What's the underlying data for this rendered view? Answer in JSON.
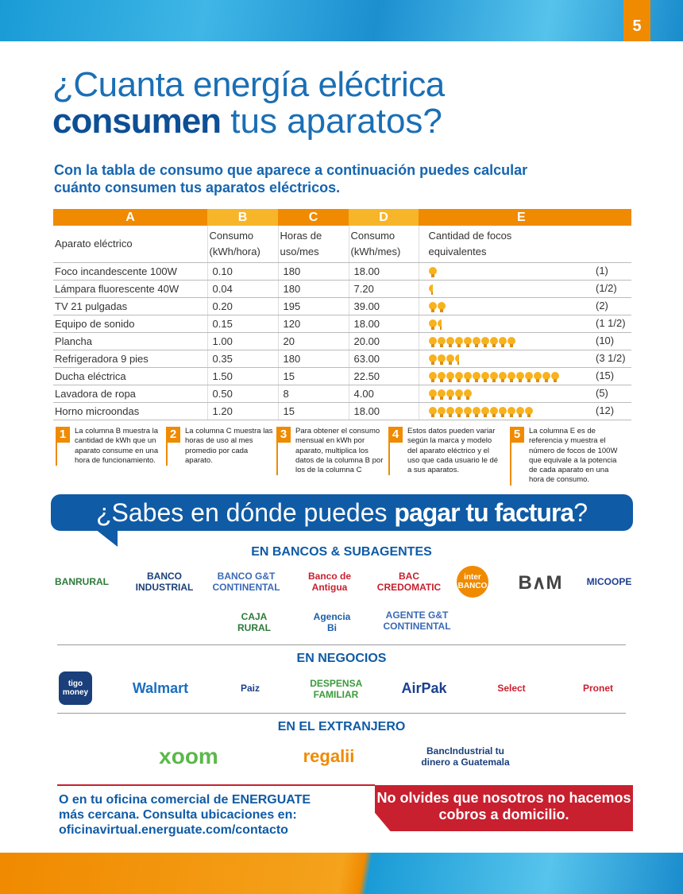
{
  "page_number": "5",
  "title": {
    "line1": "¿Cuanta energía eléctrica",
    "line2_bold": "consumen",
    "line2_rest": " tus aparatos?"
  },
  "subtitle": "Con la tabla de consumo que aparece a continuación puedes calcular cuánto consumen tus aparatos eléctricos.",
  "table": {
    "column_letters": [
      "A",
      "B",
      "C",
      "D",
      "E"
    ],
    "headers": [
      "Aparato eléctrico",
      "Consumo (kWh/hora)",
      "Horas de uso/mes",
      "Consumo (kWh/mes)",
      "Cantidad de focos equivalentes"
    ],
    "rows": [
      {
        "device": "Foco incandescente 100W",
        "b": "0.10",
        "c": "180",
        "d": "18.00",
        "bulbs": 1,
        "e": "(1)"
      },
      {
        "device": "Lámpara fluorescente 40W",
        "b": "0.04",
        "c": "180",
        "d": "7.20",
        "bulbs": 0.5,
        "e": "(1/2)"
      },
      {
        "device": "TV 21 pulgadas",
        "b": "0.20",
        "c": "195",
        "d": "39.00",
        "bulbs": 2,
        "e": "(2)"
      },
      {
        "device": "Equipo de sonido",
        "b": "0.15",
        "c": "120",
        "d": "18.00",
        "bulbs": 1.5,
        "e": "(1 1/2)"
      },
      {
        "device": "Plancha",
        "b": "1.00",
        "c": "20",
        "d": "20.00",
        "bulbs": 10,
        "e": "(10)"
      },
      {
        "device": "Refrigeradora 9 pies",
        "b": "0.35",
        "c": "180",
        "d": "63.00",
        "bulbs": 3.5,
        "e": "(3 1/2)"
      },
      {
        "device": "Ducha eléctrica",
        "b": "1.50",
        "c": "15",
        "d": "22.50",
        "bulbs": 15,
        "e": "(15)"
      },
      {
        "device": "Lavadora de ropa",
        "b": "0.50",
        "c": "8",
        "d": "4.00",
        "bulbs": 5,
        "e": "(5)"
      },
      {
        "device": "Horno microondas",
        "b": "1.20",
        "c": "15",
        "d": "18.00",
        "bulbs": 12,
        "e": "(12)"
      }
    ]
  },
  "notes": [
    {
      "n": "1",
      "text": "La columna B muestra la cantidad de kWh que un aparato consume en una hora de funcionamiento."
    },
    {
      "n": "2",
      "text": "La columna C muestra las horas de uso al mes promedio por cada aparato."
    },
    {
      "n": "3",
      "text": "Para obtener el consumo mensual en kWh por aparato, multiplica los datos de la columna B por los de la columna C"
    },
    {
      "n": "4",
      "text": "Estos datos pueden variar según la marca y modelo del aparato eléctrico y el uso que cada usuario le dé a sus aparatos."
    },
    {
      "n": "5",
      "text": "La columna E es de referencia y muestra el número de focos de 100W que equivale a la potencia de cada aparato en una hora de consumo."
    }
  ],
  "banner": {
    "pre": "¿Sabes en dónde puedes ",
    "bold": "pagar tu factura",
    "post": "?"
  },
  "sections": {
    "banks": {
      "title": "EN BANCOS & SUBAGENTES",
      "logos": [
        "BANRURAL",
        "BANCO INDUSTRIAL",
        "BANCO G&T CONTINENTAL",
        "Banco de Antigua",
        "BAC CREDOMATIC",
        "inter BANCO",
        "B∧M",
        "MICOOPE",
        "CAJA RURAL",
        "Agencia Bi",
        "AGENTE G&T CONTINENTAL"
      ]
    },
    "business": {
      "title": "EN NEGOCIOS",
      "logos": [
        "tigo money",
        "Walmart",
        "Paiz",
        "DESPENSA FAMILIAR",
        "AirPak",
        "Select",
        "Pronet"
      ]
    },
    "abroad": {
      "title": "EN EL EXTRANJERO",
      "logos": [
        "xoom",
        "regalii",
        "BancIndustrial tu dinero a Guatemala"
      ]
    }
  },
  "office": {
    "line1": "O en tu oficina comercial de ENERGUATE",
    "line2": "más cercana. Consulta ubicaciones en:",
    "link": "oficinavirtual.energuate.com/contacto"
  },
  "warning": "No olvides que nosotros no hacemos cobros a domicilio.",
  "colors": {
    "orange": "#f08a00",
    "yellow": "#f7b52a",
    "blue": "#0f5ba6",
    "red": "#c8202f"
  }
}
